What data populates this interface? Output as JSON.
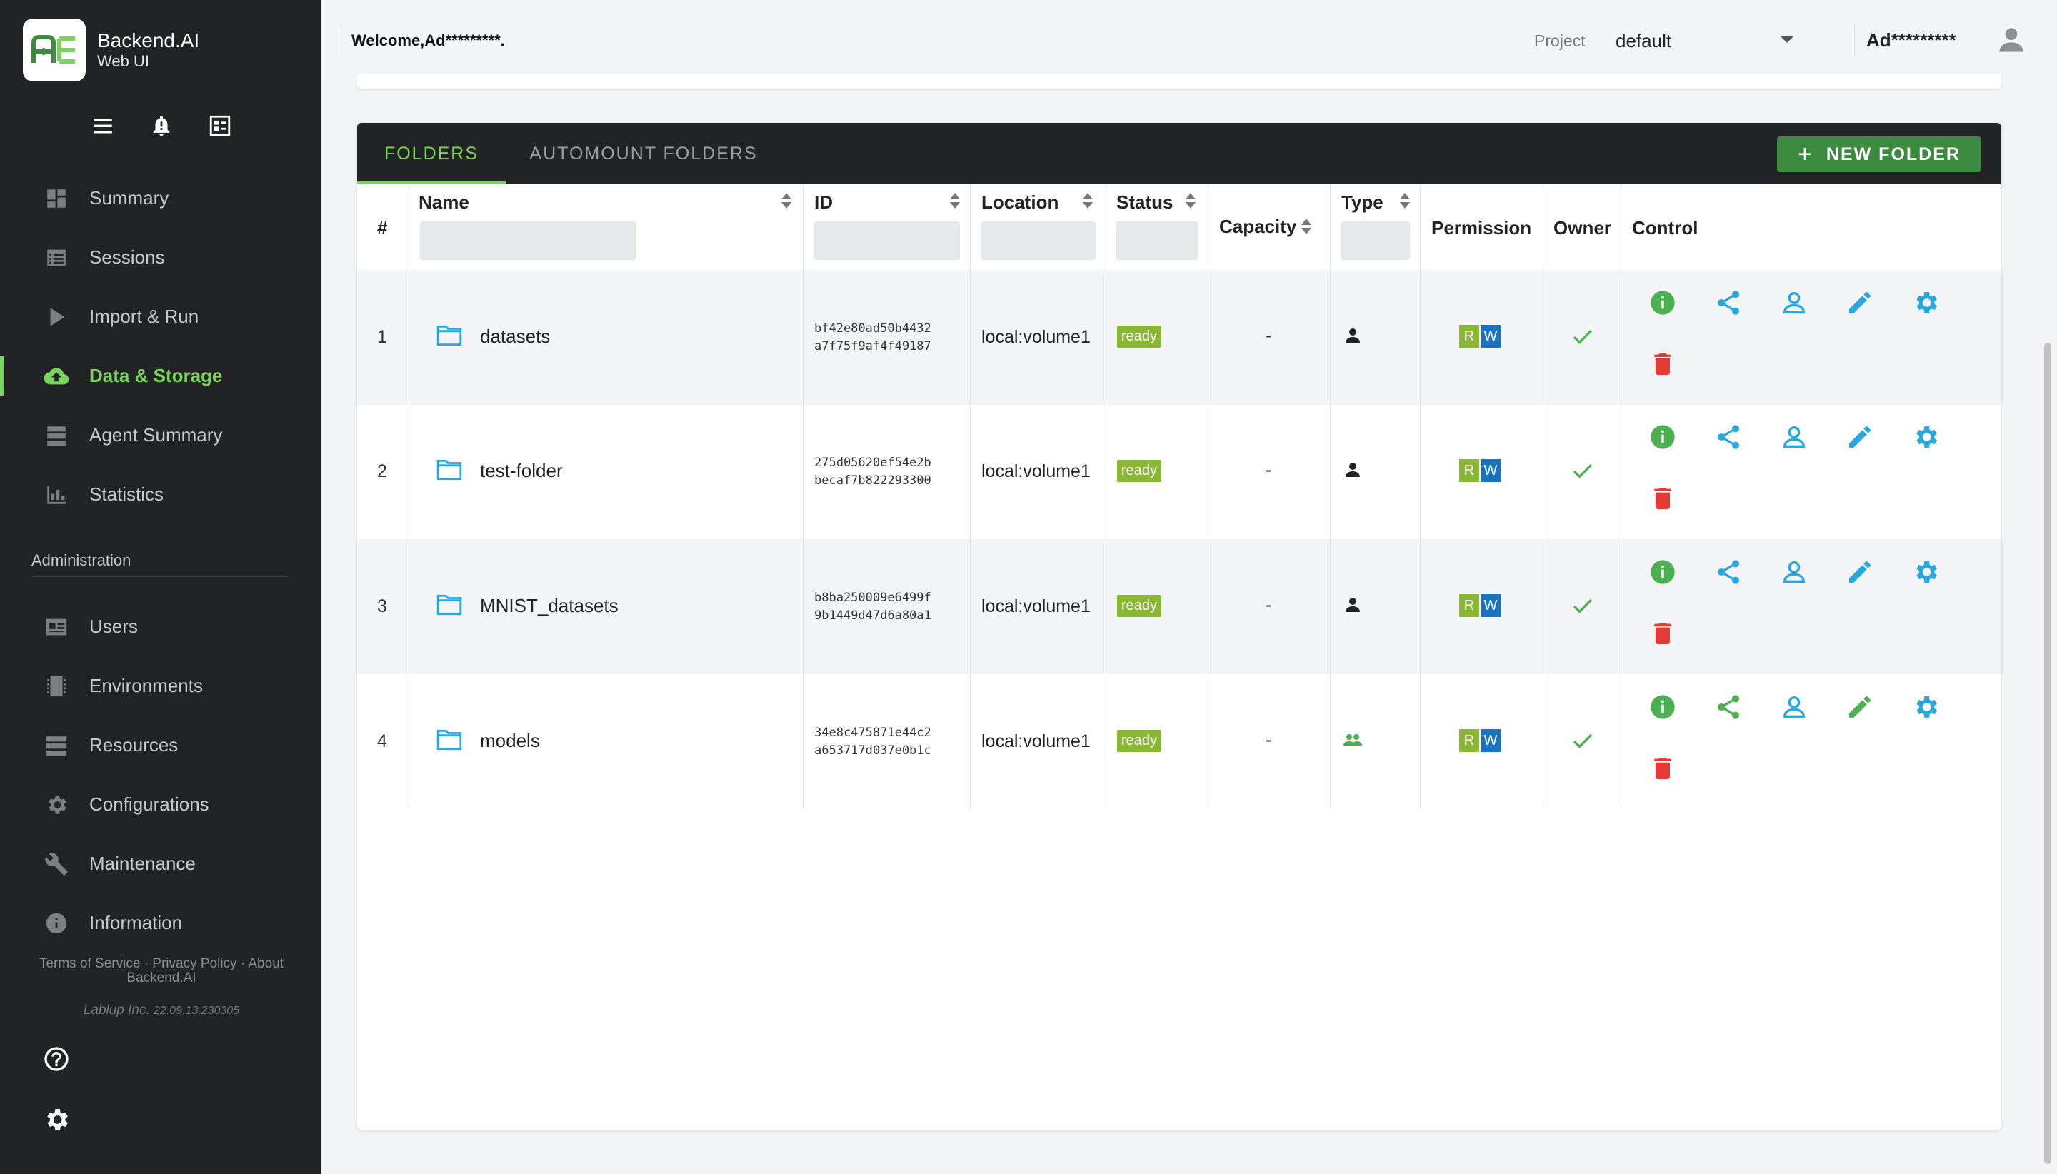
{
  "app": {
    "brand_name": "Backend.AI",
    "brand_sub": "Web UI"
  },
  "header": {
    "welcome": "Welcome,Ad*********.",
    "project_label": "Project",
    "project_value": "default",
    "user_name": "Ad*********"
  },
  "sidebar": {
    "items": [
      {
        "label": "Summary",
        "icon": "dashboard-icon"
      },
      {
        "label": "Sessions",
        "icon": "list-icon"
      },
      {
        "label": "Import & Run",
        "icon": "play-icon"
      },
      {
        "label": "Data & Storage",
        "icon": "cloud-upload-icon",
        "active": true
      },
      {
        "label": "Agent Summary",
        "icon": "dns-icon"
      },
      {
        "label": "Statistics",
        "icon": "bar-chart-icon"
      }
    ],
    "admin_title": "Administration",
    "admin_items": [
      {
        "label": "Users",
        "icon": "id-card-icon"
      },
      {
        "label": "Environments",
        "icon": "chip-icon"
      },
      {
        "label": "Resources",
        "icon": "server-icon"
      },
      {
        "label": "Configurations",
        "icon": "gear-icon"
      },
      {
        "label": "Maintenance",
        "icon": "wrench-icon"
      },
      {
        "label": "Information",
        "icon": "info-icon"
      }
    ],
    "footer_links": "Terms of Service · Privacy Policy · About Backend.AI",
    "footer_company": "Lablup Inc.",
    "footer_version": "22.09.13.230305"
  },
  "tabs": [
    {
      "label": "FOLDERS",
      "active": true
    },
    {
      "label": "AUTOMOUNT FOLDERS",
      "active": false
    }
  ],
  "new_folder_label": "NEW FOLDER",
  "table": {
    "columns": [
      "#",
      "Name",
      "ID",
      "Location",
      "Status",
      "Capacity",
      "Type",
      "Permission",
      "Owner",
      "Control"
    ],
    "rows": [
      {
        "num": "1",
        "name": "datasets",
        "id_line1": "bf42e80ad50b4432",
        "id_line2": "a7f75f9af4f49187",
        "location": "local:volume1",
        "status": "ready",
        "capacity": "-",
        "type": "user",
        "perm_r": "R",
        "perm_w": "W",
        "owner": true
      },
      {
        "num": "2",
        "name": "test-folder",
        "id_line1": "275d05620ef54e2b",
        "id_line2": "becaf7b822293300",
        "location": "local:volume1",
        "status": "ready",
        "capacity": "-",
        "type": "user",
        "perm_r": "R",
        "perm_w": "W",
        "owner": true
      },
      {
        "num": "3",
        "name": "MNIST_datasets",
        "id_line1": "b8ba250009e6499f",
        "id_line2": "9b1449d47d6a80a1",
        "location": "local:volume1",
        "status": "ready",
        "capacity": "-",
        "type": "user",
        "perm_r": "R",
        "perm_w": "W",
        "owner": true
      },
      {
        "num": "4",
        "name": "models",
        "id_line1": "34e8c475871e44c2",
        "id_line2": "a653717d037e0b1c",
        "location": "local:volume1",
        "status": "ready",
        "capacity": "-",
        "type": "group",
        "perm_r": "R",
        "perm_w": "W",
        "owner": true
      }
    ]
  },
  "colors": {
    "accent": "#7ad35f",
    "sidebar_bg": "#222325",
    "ready_badge": "#8ab832",
    "write_badge": "#1a73c1",
    "new_folder_button": "#3d8b40",
    "info_icon": "#4caf50",
    "action_icon": "#29a8e0",
    "delete_icon": "#e53935"
  }
}
